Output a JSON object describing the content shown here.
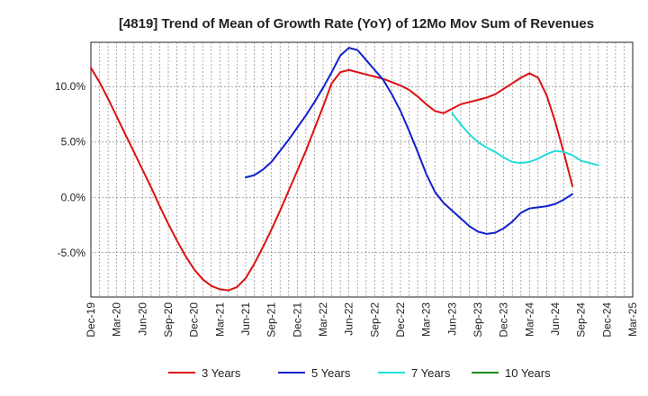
{
  "chart_data": {
    "type": "line",
    "title": "[4819]  Trend of Mean of Growth Rate (YoY) of 12Mo Mov Sum of Revenues",
    "xlabel": "",
    "ylabel": "",
    "ylim": [
      -9,
      14
    ],
    "y_ticks": [
      {
        "value": 10,
        "label": "10.0%"
      },
      {
        "value": 5,
        "label": "5.0%"
      },
      {
        "value": 0,
        "label": "0.0%"
      },
      {
        "value": -5,
        "label": "-5.0%"
      }
    ],
    "x_ticks": [
      "Dec-19",
      "Mar-20",
      "Jun-20",
      "Sep-20",
      "Dec-20",
      "Mar-21",
      "Jun-21",
      "Sep-21",
      "Dec-21",
      "Mar-22",
      "Jun-22",
      "Sep-22",
      "Dec-22",
      "Mar-23",
      "Jun-23",
      "Sep-23",
      "Dec-23",
      "Mar-24",
      "Jun-24",
      "Sep-24",
      "Dec-24",
      "Mar-25"
    ],
    "grid": true,
    "legend_position": "bottom",
    "series": [
      {
        "name": "3 Years",
        "color": "#dd1111",
        "start_index": 0,
        "values": [
          11.7,
          10.4,
          8.9,
          7.3,
          5.7,
          4.1,
          2.5,
          0.9,
          -0.8,
          -2.4,
          -3.9,
          -5.3,
          -6.5,
          -7.4,
          -8.0,
          -8.3,
          -8.4,
          -8.1,
          -7.3,
          -6.0,
          -4.5,
          -2.9,
          -1.2,
          0.6,
          2.4,
          4.2,
          6.2,
          8.2,
          10.3,
          11.3,
          11.5,
          11.3,
          11.1,
          10.9,
          10.7,
          10.4,
          10.1,
          9.7,
          9.1,
          8.4,
          7.8,
          7.6,
          8.0,
          8.4,
          8.6,
          8.8,
          9.0,
          9.3,
          9.8,
          10.3,
          10.8,
          11.2,
          10.8,
          9.2,
          6.8,
          4.0,
          1.0
        ]
      },
      {
        "name": "5 Years",
        "color": "#1122cc",
        "start_index": 18,
        "values": [
          1.8,
          2.0,
          2.5,
          3.2,
          4.2,
          5.2,
          6.3,
          7.4,
          8.6,
          9.9,
          11.3,
          12.8,
          13.5,
          13.3,
          12.4,
          11.5,
          10.6,
          9.3,
          7.8,
          6.0,
          4.1,
          2.1,
          0.5,
          -0.5,
          -1.2,
          -1.9,
          -2.6,
          -3.1,
          -3.3,
          -3.2,
          -2.8,
          -2.2,
          -1.4,
          -1.0,
          -0.9,
          -0.8,
          -0.6,
          -0.2,
          0.3
        ]
      },
      {
        "name": "7 Years",
        "color": "#22dddd",
        "start_index": 42,
        "values": [
          7.6,
          6.6,
          5.7,
          5.0,
          4.5,
          4.1,
          3.6,
          3.2,
          3.1,
          3.2,
          3.5,
          3.9,
          4.2,
          4.1,
          3.8,
          3.3,
          3.1,
          2.9
        ]
      },
      {
        "name": "10 Years",
        "color": "#118811",
        "start_index": 0,
        "values": []
      }
    ]
  }
}
